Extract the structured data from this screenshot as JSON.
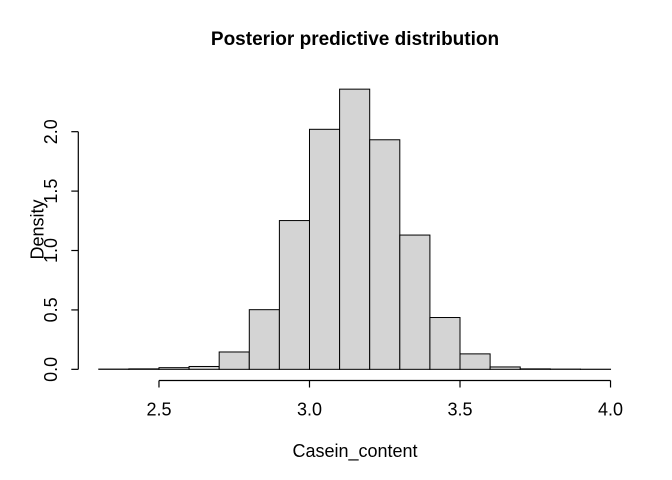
{
  "chart_data": {
    "type": "bar",
    "subtype": "histogram",
    "title": "Posterior predictive distribution",
    "xlabel": "Casein_content",
    "ylabel": "Density",
    "bin_edges": [
      2.3,
      2.4,
      2.5,
      2.6,
      2.7,
      2.8,
      2.9,
      3.0,
      3.1,
      3.2,
      3.3,
      3.4,
      3.5,
      3.6,
      3.7,
      3.8,
      3.9,
      4.0
    ],
    "densities": [
      0.002,
      0.004,
      0.014,
      0.024,
      0.146,
      0.502,
      1.252,
      2.02,
      2.358,
      1.932,
      1.13,
      0.436,
      0.13,
      0.02,
      0.004,
      0.002,
      0.001
    ],
    "x_tick_values": [
      2.5,
      3.0,
      3.5,
      4.0
    ],
    "x_tick_labels": [
      "2.5",
      "3.0",
      "3.5",
      "4.0"
    ],
    "y_tick_values": [
      0.0,
      0.5,
      1.0,
      1.5,
      2.0
    ],
    "y_tick_labels": [
      "0.0",
      "0.5",
      "1.0",
      "1.5",
      "2.0"
    ],
    "xlim": [
      2.232,
      4.068
    ],
    "ylim": [
      -0.094,
      2.451
    ],
    "grid": false,
    "legend": "none",
    "bar_fill": "#d4d4d4",
    "bar_stroke": "#000000",
    "axis_color": "#000000",
    "text_color": "#000000",
    "background": "#ffffff"
  }
}
